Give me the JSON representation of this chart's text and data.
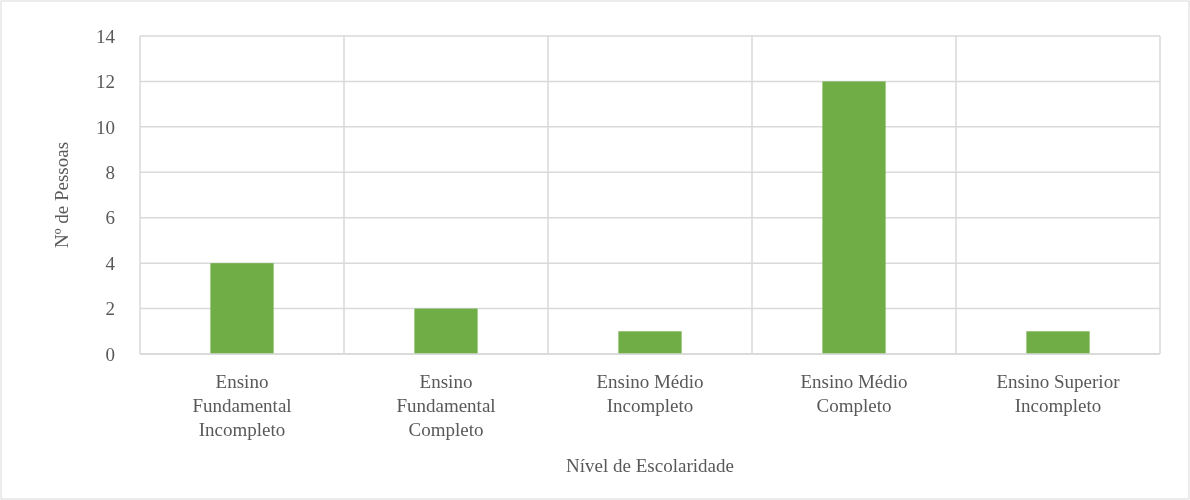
{
  "chart_data": {
    "type": "bar",
    "xlabel": "Nível de Escolaridade",
    "ylabel": "Nº de Pessoas",
    "categories": [
      "Ensino Fundamental Incompleto",
      "Ensino Fundamental Completo",
      "Ensino Médio Incompleto",
      "Ensino Médio Completo",
      "Ensino Superior Incompleto"
    ],
    "values": [
      4,
      2,
      1,
      12,
      1
    ],
    "color": "#70ad47",
    "ylim": [
      0,
      14
    ],
    "yticks": [
      0,
      2,
      4,
      6,
      8,
      10,
      12,
      14
    ],
    "grid": true
  }
}
